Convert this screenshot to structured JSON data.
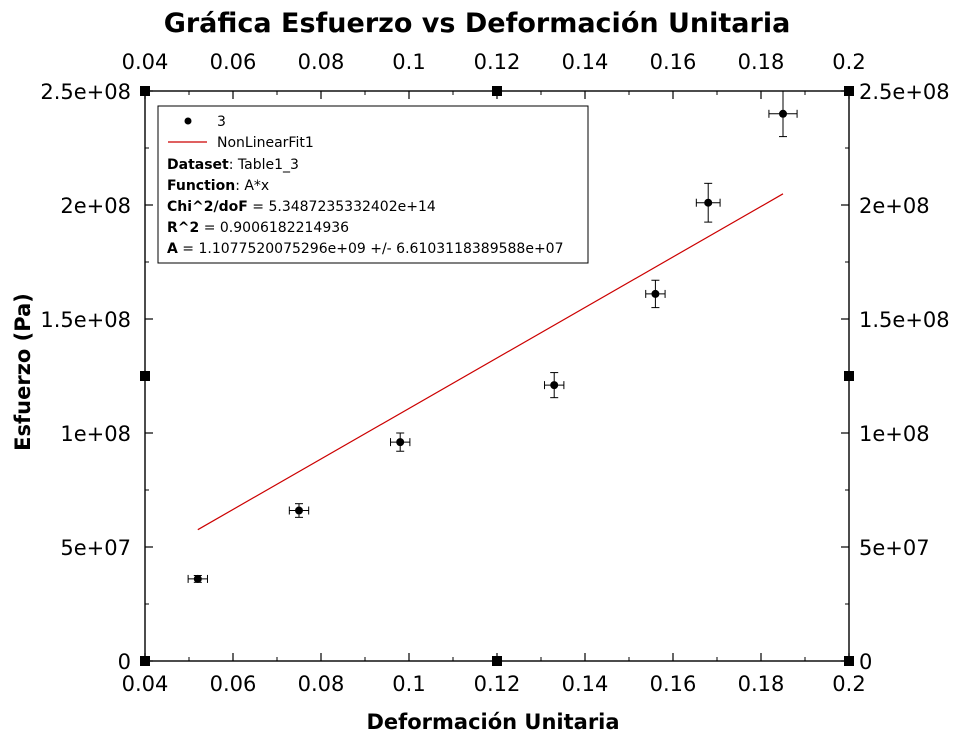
{
  "chart_data": {
    "type": "scatter",
    "title": "Gráfica Esfuerzo vs Deformación Unitaria",
    "xlabel": "Deformación Unitaria",
    "ylabel": "Esfuerzo (Pa)",
    "xlim": [
      0.04,
      0.2
    ],
    "ylim": [
      0,
      250000000
    ],
    "xticks": [
      0.04,
      0.06,
      0.08,
      0.1,
      0.12,
      0.14,
      0.16,
      0.18,
      0.2
    ],
    "xtick_labels": [
      "0.04",
      "0.06",
      "0.08",
      "0.1",
      "0.12",
      "0.14",
      "0.16",
      "0.18",
      "0.2"
    ],
    "yticks": [
      0,
      50000000,
      100000000,
      150000000,
      200000000,
      250000000
    ],
    "ytick_labels": [
      "0",
      "5e+07",
      "1e+08",
      "1.5e+08",
      "2e+08",
      "2.5e+08"
    ],
    "grid": false,
    "legend_position": "top-left",
    "series": [
      {
        "name": "3",
        "kind": "scatter",
        "color": "#000000",
        "x": [
          0.052,
          0.075,
          0.098,
          0.133,
          0.156,
          0.168,
          0.185
        ],
        "y": [
          36000000,
          66000000,
          96000000,
          121000000,
          161000000,
          201000000,
          240000000
        ],
        "xerr": [
          0.0022,
          0.0022,
          0.0022,
          0.0022,
          0.0022,
          0.0027,
          0.0032
        ],
        "yerr": [
          1500000,
          3000000,
          4000000,
          5500000,
          6000000,
          8500000,
          10000000
        ]
      },
      {
        "name": "NonLinearFit1",
        "kind": "line",
        "color": "#cc0000",
        "x": [
          0.052,
          0.185
        ],
        "y": [
          57600000,
          204900000
        ]
      }
    ],
    "legend_info": [
      {
        "label": "Dataset",
        "value": ": Table1_3"
      },
      {
        "label": "Function",
        "value": ": A*x"
      },
      {
        "label": "Chi^2/doF",
        "value": " = 5.3487235332402e+14"
      },
      {
        "label": "R^2",
        "value": " = 0.9006182214936"
      },
      {
        "label": "A",
        "value": " = 1.1077520075296e+09 +/- 6.6103118389588e+07"
      }
    ]
  }
}
